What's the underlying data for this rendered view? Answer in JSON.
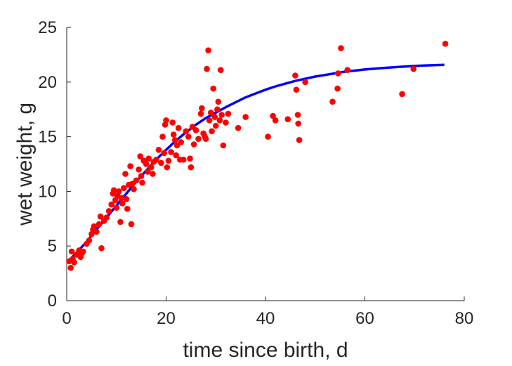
{
  "chart_data": {
    "type": "scatter",
    "xlabel": "time since birth, d",
    "ylabel": "wet weight, g",
    "xlim": [
      0,
      80
    ],
    "ylim": [
      0,
      25
    ],
    "xticks": [
      "0",
      "20",
      "40",
      "60",
      "80"
    ],
    "yticks": [
      "0",
      "5",
      "10",
      "15",
      "20",
      "25"
    ],
    "grid": false,
    "colors": {
      "points": "#ff0000",
      "fit": "#0000ff",
      "axes": "#262626"
    },
    "series": [
      {
        "type": "scatter",
        "points": [
          [
            0.5,
            3.6
          ],
          [
            0.8,
            3.0
          ],
          [
            1.0,
            4.5
          ],
          [
            1.2,
            3.8
          ],
          [
            1.5,
            3.5
          ],
          [
            2.0,
            4.2
          ],
          [
            2.5,
            4.6
          ],
          [
            2.8,
            4.0
          ],
          [
            3.0,
            4.3
          ],
          [
            3.3,
            4.5
          ],
          [
            4.0,
            5.2
          ],
          [
            4.5,
            5.5
          ],
          [
            5.0,
            6.1
          ],
          [
            5.3,
            6.5
          ],
          [
            5.5,
            6.8
          ],
          [
            6.0,
            6.3
          ],
          [
            6.5,
            7.0
          ],
          [
            6.8,
            7.7
          ],
          [
            7.0,
            4.8
          ],
          [
            7.5,
            7.3
          ],
          [
            8.0,
            7.6
          ],
          [
            8.5,
            8.2
          ],
          [
            9.0,
            8.8
          ],
          [
            9.3,
            9.8
          ],
          [
            9.5,
            10.1
          ],
          [
            9.8,
            9.2
          ],
          [
            10.0,
            8.5
          ],
          [
            10.2,
            9.6
          ],
          [
            10.5,
            10.0
          ],
          [
            10.8,
            7.2
          ],
          [
            11.0,
            9.4
          ],
          [
            11.2,
            8.9
          ],
          [
            11.5,
            10.3
          ],
          [
            11.8,
            11.6
          ],
          [
            12.0,
            9.3
          ],
          [
            12.2,
            8.4
          ],
          [
            12.5,
            10.6
          ],
          [
            12.8,
            12.3
          ],
          [
            13.0,
            7.0
          ],
          [
            13.2,
            10.7
          ],
          [
            13.5,
            10.2
          ],
          [
            14.0,
            11.0
          ],
          [
            14.5,
            12.0
          ],
          [
            14.8,
            13.2
          ],
          [
            15.0,
            11.4
          ],
          [
            15.2,
            10.8
          ],
          [
            15.5,
            12.8
          ],
          [
            16.0,
            12.5
          ],
          [
            16.3,
            11.8
          ],
          [
            16.5,
            13.0
          ],
          [
            17.0,
            12.2
          ],
          [
            17.3,
            11.6
          ],
          [
            17.5,
            12.7
          ],
          [
            18.0,
            12.9
          ],
          [
            18.5,
            13.8
          ],
          [
            19.0,
            12.6
          ],
          [
            19.3,
            15.0
          ],
          [
            19.6,
            13.5
          ],
          [
            19.8,
            16.1
          ],
          [
            20.0,
            16.5
          ],
          [
            20.2,
            12.2
          ],
          [
            20.5,
            12.8
          ],
          [
            21.0,
            13.6
          ],
          [
            21.3,
            16.3
          ],
          [
            21.5,
            15.2
          ],
          [
            21.8,
            14.7
          ],
          [
            22.0,
            13.3
          ],
          [
            22.2,
            14.2
          ],
          [
            22.5,
            15.8
          ],
          [
            22.8,
            12.9
          ],
          [
            23.0,
            14.5
          ],
          [
            23.5,
            12.9
          ],
          [
            24.0,
            15.5
          ],
          [
            24.5,
            15.0
          ],
          [
            24.8,
            13.0
          ],
          [
            25.0,
            12.2
          ],
          [
            25.3,
            15.9
          ],
          [
            25.6,
            14.3
          ],
          [
            26.0,
            15.6
          ],
          [
            26.5,
            14.8
          ],
          [
            27.0,
            17.1
          ],
          [
            27.2,
            17.6
          ],
          [
            27.5,
            15.3
          ],
          [
            27.8,
            15.0
          ],
          [
            28.0,
            14.8
          ],
          [
            28.2,
            21.2
          ],
          [
            28.5,
            22.9
          ],
          [
            28.7,
            16.5
          ],
          [
            29.0,
            17.2
          ],
          [
            29.2,
            15.5
          ],
          [
            29.5,
            19.4
          ],
          [
            29.8,
            16.8
          ],
          [
            30.0,
            16.0
          ],
          [
            30.3,
            17.5
          ],
          [
            30.5,
            18.2
          ],
          [
            30.8,
            16.5
          ],
          [
            31.0,
            21.1
          ],
          [
            31.2,
            17.0
          ],
          [
            31.5,
            14.2
          ],
          [
            32.0,
            16.3
          ],
          [
            32.5,
            17.1
          ],
          [
            34.5,
            15.8
          ],
          [
            36.0,
            16.8
          ],
          [
            40.5,
            15.0
          ],
          [
            41.5,
            16.9
          ],
          [
            42.0,
            16.5
          ],
          [
            44.5,
            16.6
          ],
          [
            46.0,
            20.6
          ],
          [
            46.2,
            19.3
          ],
          [
            46.5,
            17.0
          ],
          [
            46.6,
            16.2
          ],
          [
            46.8,
            14.7
          ],
          [
            48.0,
            20.0
          ],
          [
            53.5,
            18.2
          ],
          [
            54.5,
            19.4
          ],
          [
            54.6,
            20.8
          ],
          [
            55.2,
            23.1
          ],
          [
            56.5,
            21.1
          ],
          [
            67.5,
            18.9
          ],
          [
            69.8,
            21.2
          ],
          [
            76.2,
            23.5
          ]
        ]
      },
      {
        "type": "line",
        "points": [
          [
            0.5,
            3.7
          ],
          [
            2,
            4.4
          ],
          [
            4,
            5.4
          ],
          [
            6,
            6.5
          ],
          [
            8,
            7.6
          ],
          [
            10,
            8.7
          ],
          [
            12,
            9.8
          ],
          [
            14,
            10.9
          ],
          [
            16,
            11.9
          ],
          [
            18,
            12.9
          ],
          [
            20,
            13.8
          ],
          [
            22,
            14.65
          ],
          [
            24,
            15.4
          ],
          [
            26,
            16.1
          ],
          [
            28,
            16.7
          ],
          [
            30,
            17.2
          ],
          [
            32,
            17.7
          ],
          [
            34,
            18.15
          ],
          [
            36,
            18.6
          ],
          [
            38,
            18.95
          ],
          [
            40,
            19.3
          ],
          [
            42,
            19.6
          ],
          [
            44,
            19.85
          ],
          [
            46,
            20.1
          ],
          [
            48,
            20.3
          ],
          [
            50,
            20.5
          ],
          [
            52,
            20.65
          ],
          [
            54,
            20.8
          ],
          [
            56,
            20.95
          ],
          [
            58,
            21.05
          ],
          [
            60,
            21.15
          ],
          [
            62,
            21.22
          ],
          [
            64,
            21.3
          ],
          [
            66,
            21.36
          ],
          [
            68,
            21.42
          ],
          [
            70,
            21.47
          ],
          [
            72,
            21.51
          ],
          [
            74,
            21.55
          ],
          [
            76,
            21.58
          ]
        ]
      }
    ]
  }
}
